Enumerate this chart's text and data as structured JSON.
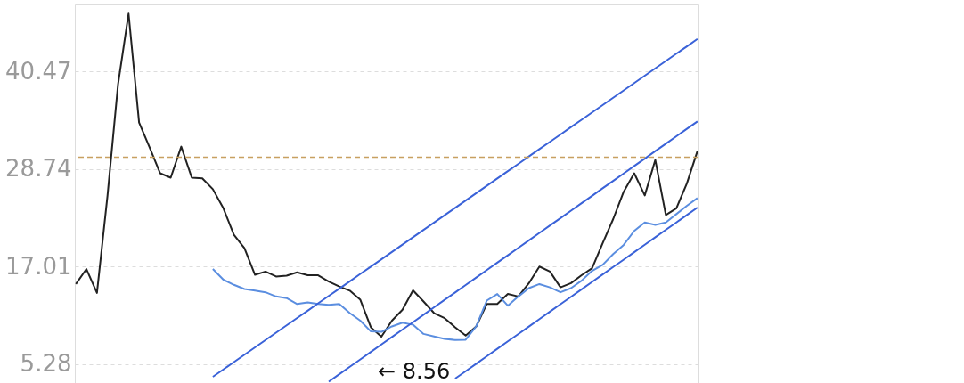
{
  "chart_data": {
    "type": "line",
    "categories": [
      null,
      null,
      null,
      null,
      null,
      null,
      null,
      null,
      null,
      null,
      null,
      null,
      null,
      null,
      null,
      null,
      null,
      null,
      null,
      null,
      null,
      null,
      null,
      null,
      null,
      null,
      null,
      null,
      null,
      null,
      null,
      null,
      null,
      null,
      null,
      null,
      null,
      null,
      null,
      null,
      null,
      null,
      null,
      null,
      null,
      null,
      null,
      null,
      null,
      null,
      null,
      null,
      null,
      null,
      null,
      null,
      null,
      null,
      null,
      null
    ],
    "ylim": [
      3,
      48.5
    ],
    "yticks": [
      5.28,
      17.01,
      28.74,
      40.47
    ],
    "grid": "y",
    "tick_labels": "y",
    "series": [
      {
        "color": "#222222",
        "values": [
          14.89,
          16.7,
          13.82,
          25.5,
          38.87,
          47.4,
          34.3,
          31.3,
          28.21,
          27.68,
          31.41,
          27.68,
          27.6,
          26.3,
          24.0,
          20.8,
          19.2,
          16.0,
          16.4,
          15.8,
          15.9,
          16.3,
          15.95,
          15.95,
          15.2,
          14.6,
          14.1,
          13.0,
          9.7,
          8.56,
          10.5,
          11.8,
          14.14,
          12.8,
          11.4,
          10.8,
          9.7,
          8.7,
          9.8,
          12.5,
          12.5,
          13.7,
          13.4,
          15.0,
          17.0,
          16.4,
          14.5,
          15.0,
          15.95,
          16.8,
          19.8,
          22.7,
          26.0,
          28.21,
          25.55,
          29.81,
          23.2,
          24.0,
          27.0,
          30.88
        ]
      },
      {
        "color": "#5b8ee0",
        "values": [
          null,
          null,
          null,
          null,
          null,
          null,
          null,
          null,
          null,
          null,
          null,
          null,
          null,
          16.7,
          15.42,
          14.8,
          14.3,
          14.1,
          13.9,
          13.4,
          13.2,
          12.5,
          12.7,
          12.5,
          12.4,
          12.5,
          11.4,
          10.5,
          9.2,
          9.15,
          9.8,
          10.25,
          10.0,
          8.9,
          8.6,
          8.3,
          8.17,
          8.2,
          9.8,
          12.9,
          13.7,
          12.3,
          13.4,
          14.4,
          14.89,
          14.5,
          13.9,
          14.4,
          15.3,
          16.48,
          17.2,
          18.5,
          19.6,
          21.28,
          22.3,
          22.0,
          22.3,
          23.3,
          24.3,
          25.23
        ]
      },
      {
        "type": "line",
        "color": "#3a62d8",
        "values": [
          null,
          null,
          null,
          null,
          null,
          null,
          null,
          null,
          null,
          null,
          null,
          null,
          null,
          3.75,
          4.63,
          5.52,
          6.4,
          7.28,
          8.16,
          9.05,
          9.93,
          10.81,
          11.69,
          12.58,
          13.46,
          14.34,
          15.22,
          16.11,
          16.99,
          17.87,
          18.75,
          19.64,
          20.52,
          21.4,
          22.28,
          23.17,
          24.05,
          24.93,
          25.81,
          26.7,
          27.58,
          28.46,
          29.34,
          30.23,
          31.11,
          31.99,
          32.87,
          33.76,
          34.64,
          35.52,
          36.4,
          37.29,
          38.17,
          39.05,
          39.93,
          40.82,
          41.7,
          42.58,
          43.46,
          44.35
        ]
      },
      {
        "type": "line",
        "color": "#3a62d8",
        "values": [
          null,
          null,
          null,
          null,
          null,
          null,
          null,
          null,
          null,
          null,
          null,
          null,
          null,
          null,
          null,
          null,
          null,
          null,
          null,
          null,
          null,
          null,
          null,
          null,
          3.16,
          4.05,
          4.95,
          5.84,
          6.73,
          7.63,
          8.52,
          9.42,
          10.31,
          11.2,
          12.1,
          12.99,
          13.88,
          14.78,
          15.67,
          16.57,
          17.46,
          18.35,
          19.25,
          20.14,
          21.04,
          21.93,
          22.82,
          23.72,
          24.61,
          25.5,
          26.4,
          27.29,
          28.19,
          29.08,
          29.97,
          30.87,
          31.76,
          32.65,
          33.55,
          34.44
        ]
      },
      {
        "type": "line",
        "color": "#3a62d8",
        "values": [
          null,
          null,
          null,
          null,
          null,
          null,
          null,
          null,
          null,
          null,
          null,
          null,
          null,
          null,
          null,
          null,
          null,
          null,
          null,
          null,
          null,
          null,
          null,
          null,
          null,
          null,
          null,
          null,
          null,
          null,
          null,
          null,
          null,
          null,
          null,
          null,
          3.53,
          4.42,
          5.32,
          6.21,
          7.11,
          8.0,
          8.89,
          9.79,
          10.68,
          11.58,
          12.47,
          13.36,
          14.26,
          15.15,
          16.05,
          16.94,
          17.83,
          18.73,
          19.62,
          20.52,
          21.41,
          22.3,
          23.2,
          24.09
        ]
      }
    ],
    "ref_lines": [
      {
        "axis": "y",
        "value": 30.13,
        "color": "#c8a060",
        "line_style": "dashed"
      }
    ],
    "annotations": [
      "← 8.56"
    ]
  }
}
